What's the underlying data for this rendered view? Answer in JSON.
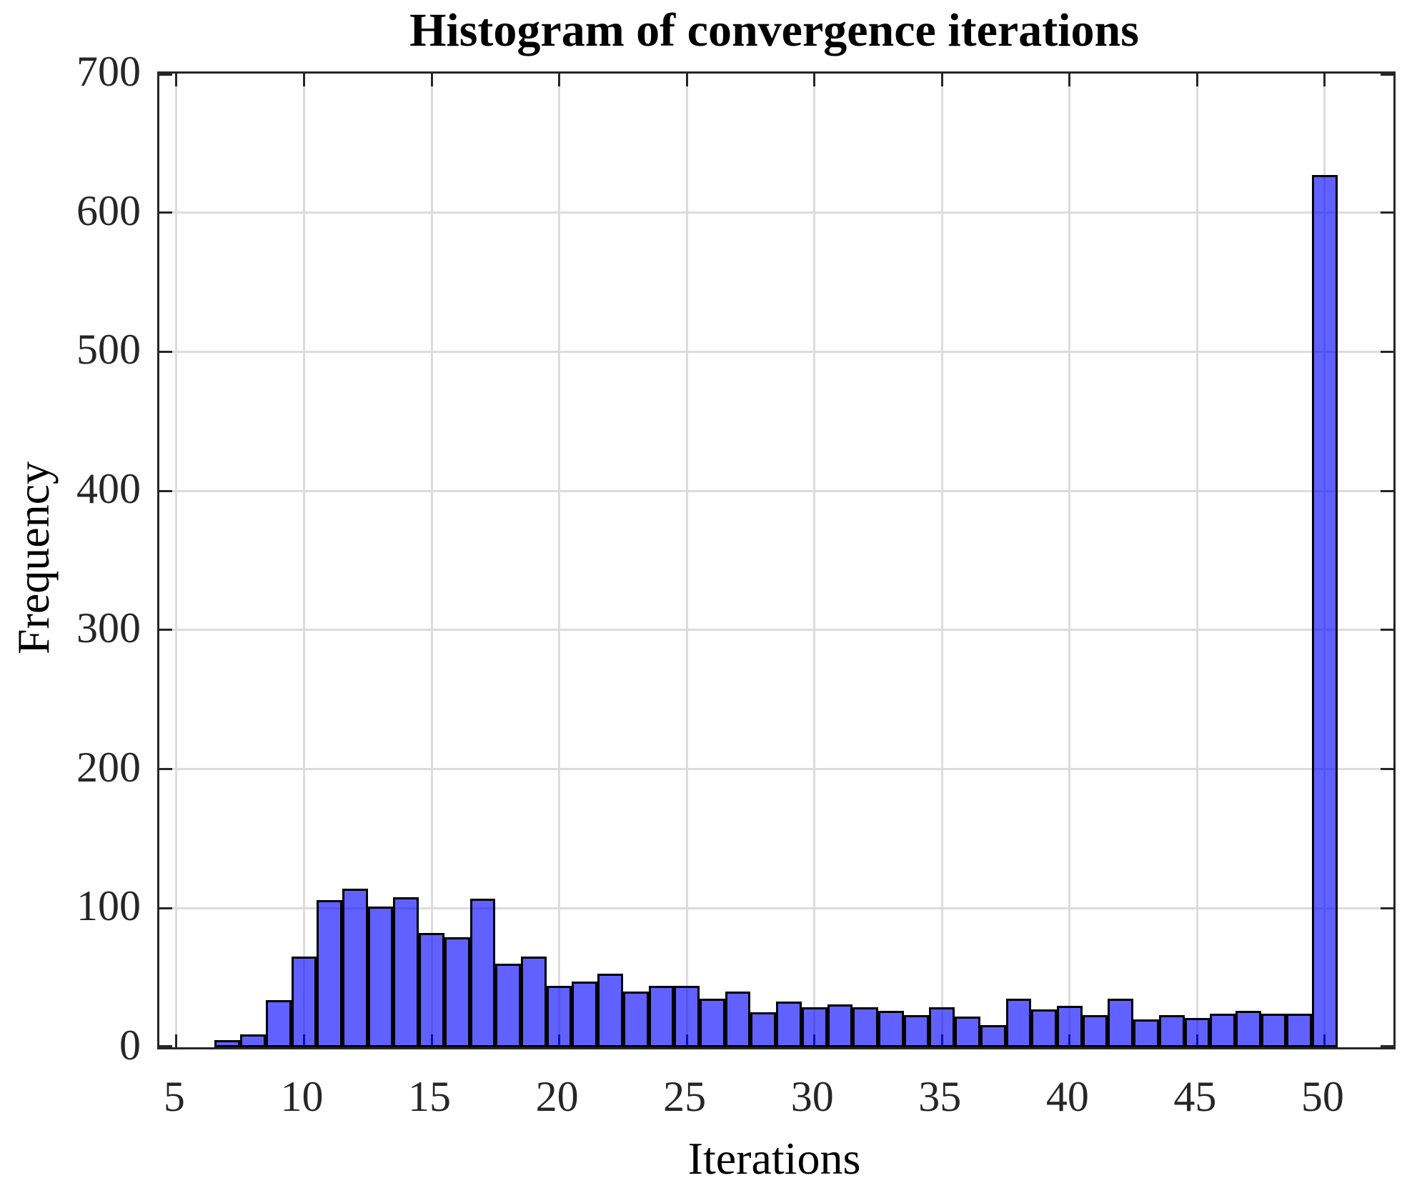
{
  "chart_data": {
    "type": "bar",
    "subtype": "histogram",
    "title": "Histogram of convergence iterations",
    "xlabel": "Iterations",
    "ylabel": "Frequency",
    "bin_width": 1,
    "categories": [
      7,
      8,
      9,
      10,
      11,
      12,
      13,
      14,
      15,
      16,
      17,
      18,
      19,
      20,
      21,
      22,
      23,
      24,
      25,
      26,
      27,
      28,
      29,
      30,
      31,
      32,
      33,
      34,
      35,
      36,
      37,
      38,
      39,
      40,
      41,
      42,
      43,
      44,
      45,
      46,
      47,
      48,
      49,
      50
    ],
    "values": [
      5,
      9,
      34,
      65,
      106,
      114,
      101,
      108,
      82,
      79,
      107,
      60,
      65,
      44,
      47,
      53,
      40,
      44,
      44,
      35,
      40,
      25,
      33,
      29,
      31,
      29,
      26,
      23,
      29,
      22,
      16,
      35,
      27,
      30,
      23,
      35,
      20,
      23,
      21,
      24,
      26,
      24,
      24,
      627
    ],
    "x_ticks": [
      5,
      10,
      15,
      20,
      25,
      30,
      35,
      40,
      45,
      50
    ],
    "y_ticks": [
      0,
      100,
      200,
      300,
      400,
      500,
      600,
      700
    ],
    "xlim": [
      4.33,
      52.69
    ],
    "ylim": [
      0,
      700
    ],
    "grid": true,
    "legend": null,
    "colors": {
      "bar_face": "rgba(0,0,255,0.62)",
      "bar_edge": "#000000",
      "axis": "#262626",
      "grid": "#dcdcdc",
      "text": "#000000"
    }
  }
}
